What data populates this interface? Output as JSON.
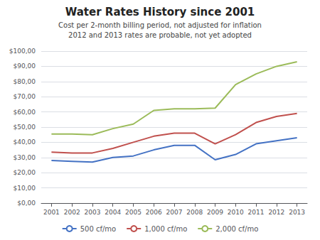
{
  "chart_data": {
    "type": "line",
    "title": "Water Rates History since 2001",
    "subtitle": [
      "Cost per 2-month billing period, not adjusted for inflation",
      "2012 and 2013 rates are probable, not yet adopted"
    ],
    "x": [
      2001,
      2002,
      2003,
      2004,
      2005,
      2006,
      2007,
      2008,
      2009,
      2010,
      2011,
      2012,
      2013
    ],
    "series": [
      {
        "name": "500 cf/mo",
        "color": "#4472C4",
        "values": [
          28,
          27.5,
          27,
          30,
          31,
          35,
          38,
          38,
          28.5,
          32,
          39,
          41,
          43
        ]
      },
      {
        "name": "1,000 cf/mo",
        "color": "#C0504D",
        "values": [
          33.5,
          33,
          33,
          36,
          40,
          44,
          46,
          46,
          39,
          45,
          53,
          57,
          59
        ]
      },
      {
        "name": "2,000 cf/mo",
        "color": "#9BBB59",
        "values": [
          45.5,
          45.5,
          45,
          49,
          52,
          61,
          62,
          62,
          62.5,
          78,
          85,
          90,
          93
        ]
      }
    ],
    "xlim": [
      2000.5,
      2013.5
    ],
    "xticks": [
      2001,
      2002,
      2003,
      2004,
      2005,
      2006,
      2007,
      2008,
      2009,
      2010,
      2011,
      2012,
      2013
    ],
    "ylim": [
      0,
      100
    ],
    "yticks": [
      {
        "value": 0,
        "label": "$0,00"
      },
      {
        "value": 10,
        "label": "$10,00"
      },
      {
        "value": 20,
        "label": "$20,00"
      },
      {
        "value": 30,
        "label": "$30,00"
      },
      {
        "value": 40,
        "label": "$40,00"
      },
      {
        "value": 50,
        "label": "$50,00"
      },
      {
        "value": 60,
        "label": "$60,00"
      },
      {
        "value": 70,
        "label": "$70,00"
      },
      {
        "value": 80,
        "label": "$80,00"
      },
      {
        "value": 90,
        "label": "$90,00"
      },
      {
        "value": 100,
        "label": "$100,00"
      }
    ],
    "grid": true,
    "legend": "bottom"
  }
}
